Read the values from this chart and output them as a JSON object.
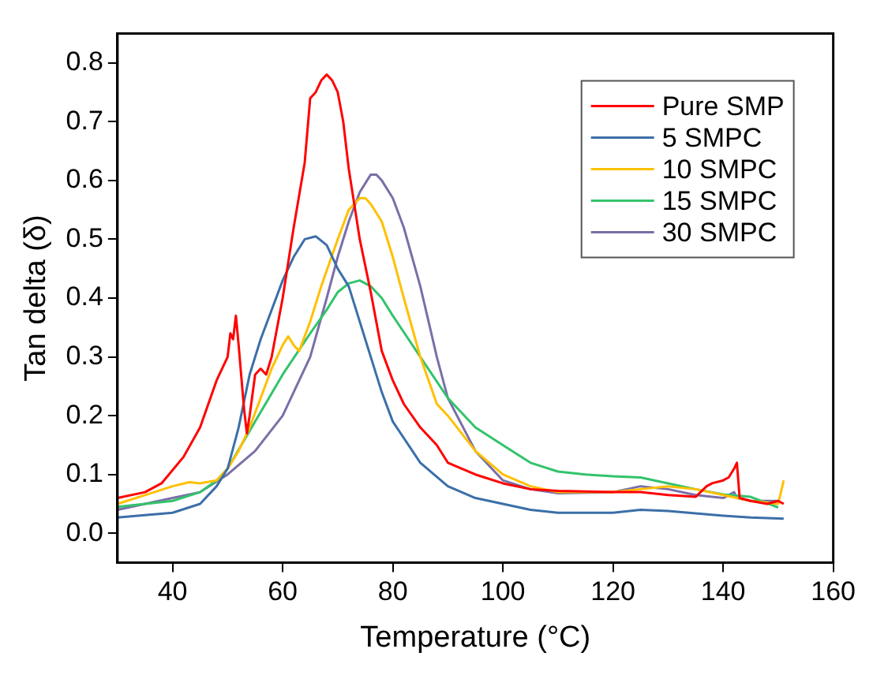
{
  "chart_data": {
    "type": "line",
    "xlabel": "Temperature (°C)",
    "ylabel": "Tan delta (δ)",
    "xlim": [
      30,
      160
    ],
    "xticks": [
      40,
      60,
      80,
      100,
      120,
      140,
      160
    ],
    "ylim": [
      -0.05,
      0.85
    ],
    "yticks": [
      {
        "value": 0,
        "label": "0.0"
      },
      0.1,
      0.2,
      0.3,
      0.4,
      0.5,
      0.6,
      0.7,
      0.8
    ],
    "grid": false,
    "legend": "top right",
    "marker": "none",
    "line_style": "solid",
    "series": [
      {
        "name": "Pure SMP",
        "color": "#ff0000",
        "x": [
          30,
          35,
          38,
          42,
          45,
          48,
          50,
          50.5,
          51,
          51.5,
          52,
          53,
          53.5,
          54,
          55,
          56,
          57,
          58,
          60,
          62,
          64,
          65,
          66,
          67,
          68,
          69,
          70,
          71,
          72,
          74,
          76,
          78,
          80,
          82,
          85,
          88,
          90,
          95,
          100,
          105,
          110,
          120,
          125,
          130,
          135,
          137,
          138,
          140,
          141,
          142,
          142.5,
          143,
          145,
          148,
          150,
          151
        ],
        "values": [
          0.06,
          0.07,
          0.085,
          0.13,
          0.18,
          0.26,
          0.3,
          0.34,
          0.33,
          0.37,
          0.32,
          0.21,
          0.17,
          0.2,
          0.27,
          0.28,
          0.27,
          0.3,
          0.4,
          0.52,
          0.63,
          0.74,
          0.75,
          0.77,
          0.78,
          0.77,
          0.75,
          0.7,
          0.62,
          0.5,
          0.41,
          0.31,
          0.26,
          0.22,
          0.18,
          0.15,
          0.12,
          0.1,
          0.085,
          0.075,
          0.072,
          0.07,
          0.07,
          0.065,
          0.062,
          0.08,
          0.085,
          0.09,
          0.095,
          0.11,
          0.12,
          0.06,
          0.055,
          0.05,
          0.055,
          0.05
        ]
      },
      {
        "name": "5 SMPC",
        "color": "#3b6fa8",
        "x": [
          30,
          40,
          45,
          48,
          50,
          52,
          54,
          56,
          58,
          60,
          62,
          64,
          66,
          68,
          70,
          72,
          74,
          76,
          78,
          80,
          85,
          90,
          95,
          100,
          105,
          110,
          120,
          125,
          130,
          140,
          145,
          151
        ],
        "values": [
          0.027,
          0.035,
          0.05,
          0.08,
          0.11,
          0.18,
          0.27,
          0.33,
          0.38,
          0.43,
          0.47,
          0.5,
          0.505,
          0.49,
          0.45,
          0.42,
          0.36,
          0.3,
          0.24,
          0.19,
          0.12,
          0.08,
          0.06,
          0.05,
          0.04,
          0.035,
          0.035,
          0.04,
          0.038,
          0.03,
          0.027,
          0.025
        ]
      },
      {
        "name": "10 SMPC",
        "color": "#ffc000",
        "x": [
          30,
          35,
          40,
          43,
          45,
          48,
          50,
          52,
          54,
          56,
          58,
          60,
          61,
          62,
          63,
          65,
          67,
          70,
          72,
          74,
          75,
          76,
          78,
          80,
          82,
          85,
          88,
          90,
          95,
          100,
          105,
          110,
          120,
          125,
          130,
          135,
          140,
          145,
          150,
          151
        ],
        "values": [
          0.05,
          0.065,
          0.08,
          0.087,
          0.085,
          0.09,
          0.11,
          0.14,
          0.18,
          0.23,
          0.28,
          0.32,
          0.335,
          0.32,
          0.31,
          0.36,
          0.42,
          0.5,
          0.55,
          0.57,
          0.57,
          0.56,
          0.53,
          0.47,
          0.4,
          0.3,
          0.22,
          0.2,
          0.14,
          0.1,
          0.08,
          0.07,
          0.07,
          0.075,
          0.08,
          0.075,
          0.065,
          0.055,
          0.05,
          0.09
        ]
      },
      {
        "name": "15 SMPC",
        "color": "#33c36b",
        "x": [
          30,
          40,
          45,
          48,
          50,
          55,
          60,
          65,
          68,
          70,
          72,
          74,
          76,
          78,
          80,
          85,
          90,
          95,
          100,
          105,
          110,
          115,
          120,
          125,
          130,
          135,
          140,
          145,
          150
        ],
        "values": [
          0.045,
          0.055,
          0.07,
          0.09,
          0.11,
          0.19,
          0.27,
          0.34,
          0.38,
          0.41,
          0.425,
          0.43,
          0.42,
          0.4,
          0.37,
          0.3,
          0.23,
          0.18,
          0.15,
          0.12,
          0.105,
          0.1,
          0.097,
          0.095,
          0.085,
          0.075,
          0.066,
          0.062,
          0.044
        ]
      },
      {
        "name": "30 SMPC",
        "color": "#7a6fa8",
        "x": [
          30,
          40,
          45,
          50,
          55,
          60,
          65,
          68,
          70,
          72,
          74,
          76,
          77,
          78,
          80,
          82,
          85,
          88,
          90,
          95,
          100,
          105,
          110,
          120,
          125,
          130,
          135,
          140,
          142,
          142.5,
          145,
          150
        ],
        "values": [
          0.04,
          0.06,
          0.07,
          0.1,
          0.14,
          0.2,
          0.3,
          0.4,
          0.47,
          0.53,
          0.58,
          0.61,
          0.61,
          0.6,
          0.57,
          0.52,
          0.42,
          0.3,
          0.23,
          0.14,
          0.09,
          0.075,
          0.068,
          0.07,
          0.08,
          0.075,
          0.065,
          0.06,
          0.07,
          0.06,
          0.055,
          0.055
        ]
      }
    ]
  }
}
